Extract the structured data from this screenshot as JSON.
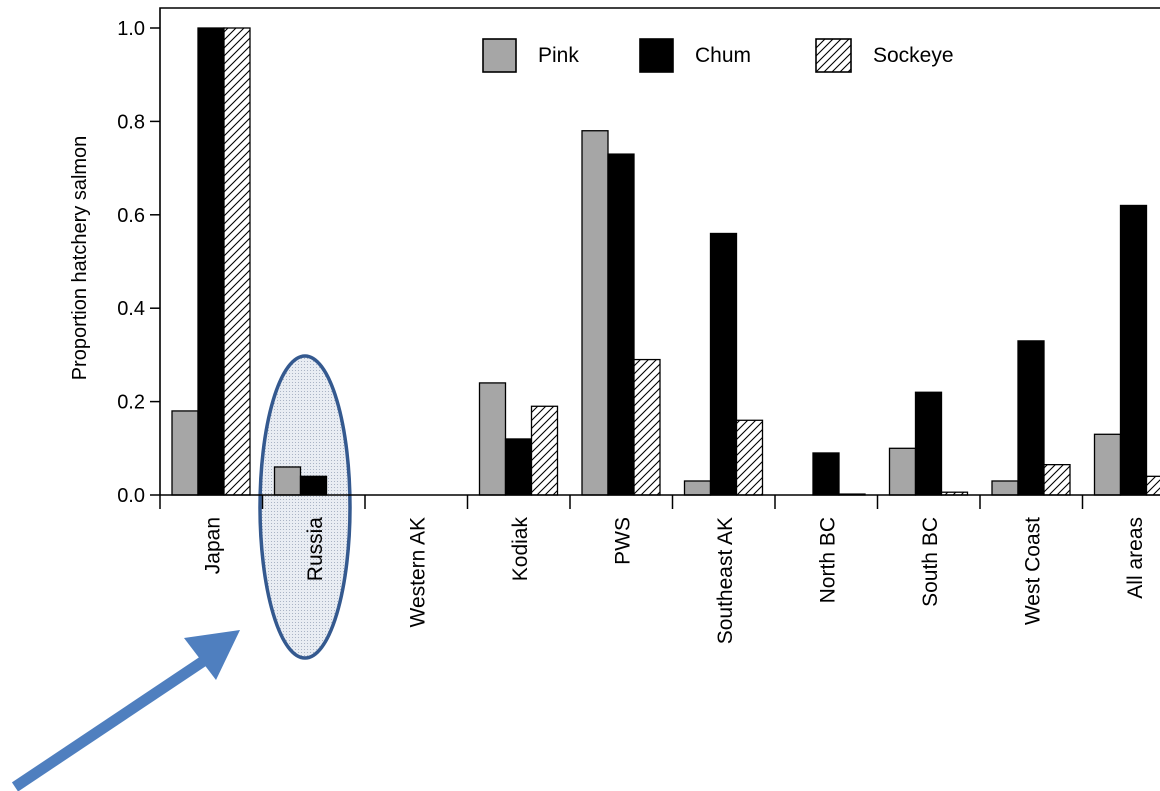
{
  "chart_data": {
    "type": "bar",
    "title": "",
    "xlabel": "",
    "ylabel": "Proportion hatchery salmon",
    "ylim": [
      0,
      1.0
    ],
    "yticks": [
      "0.0",
      "0.2",
      "0.4",
      "0.6",
      "0.8",
      "1.0"
    ],
    "grid": false,
    "legend_position": "top",
    "categories": [
      "Japan",
      "Russia",
      "Western AK",
      "Kodiak",
      "PWS",
      "Southeast AK",
      "North BC",
      "South BC",
      "West Coast",
      "All areas"
    ],
    "series": [
      {
        "name": "Pink",
        "values": [
          0.18,
          0.06,
          0.0,
          0.24,
          0.78,
          0.03,
          0.0,
          0.1,
          0.03,
          0.13
        ]
      },
      {
        "name": "Chum",
        "values": [
          1.0,
          0.04,
          0.0,
          0.12,
          0.73,
          0.56,
          0.09,
          0.22,
          0.33,
          0.62
        ]
      },
      {
        "name": "Sockeye",
        "values": [
          1.0,
          0.0,
          0.0,
          0.19,
          0.29,
          0.16,
          0.002,
          0.006,
          0.065,
          0.04
        ]
      }
    ],
    "series_styles": {
      "Pink": {
        "fill": "#a6a6a6",
        "pattern": "solid"
      },
      "Chum": {
        "fill": "#000000",
        "pattern": "solid"
      },
      "Sockeye": {
        "fill": "#ffffff",
        "pattern": "diagonal-hatch"
      }
    },
    "highlight": {
      "category": "Russia",
      "shape": "ellipse",
      "color": "#34598f",
      "fill": "#e6ebf2"
    },
    "arrow": {
      "color": "#4f7fbf",
      "points_to": "Russia"
    }
  }
}
